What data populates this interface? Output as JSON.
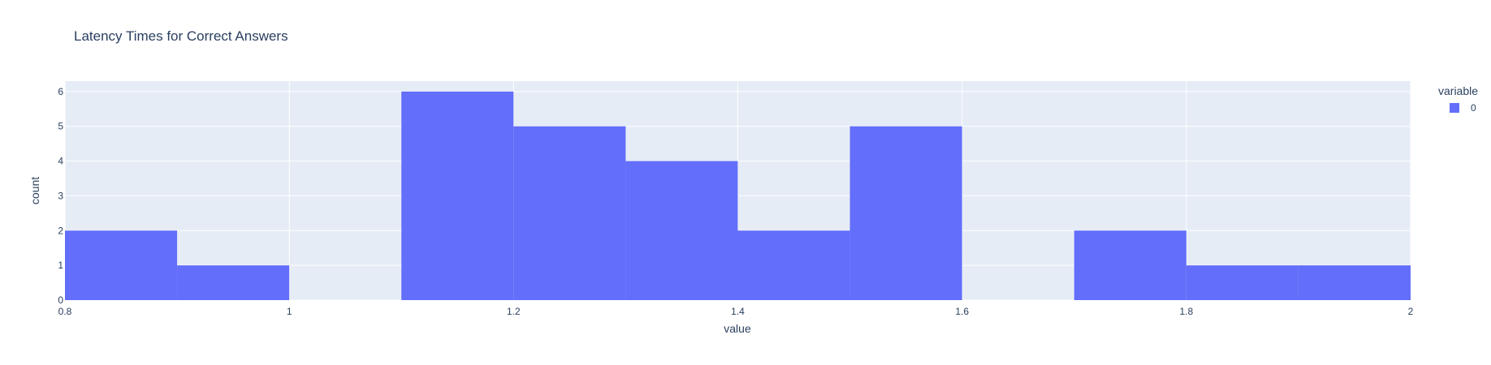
{
  "chart_data": {
    "type": "histogram",
    "title": "Latency Times for Correct Answers",
    "xlabel": "value",
    "ylabel": "count",
    "xlim": [
      0.8,
      2.0
    ],
    "ylim": [
      0,
      6.3
    ],
    "x_ticks": [
      "0.8",
      "1",
      "1.2",
      "1.4",
      "1.6",
      "1.8",
      "2"
    ],
    "y_ticks": [
      "0",
      "1",
      "2",
      "3",
      "4",
      "5",
      "6"
    ],
    "grid": true,
    "legend": {
      "title": "variable",
      "position": "top-right",
      "entries": [
        {
          "name": "0",
          "color": "#636efa"
        }
      ]
    },
    "series": [
      {
        "name": "0",
        "color": "#636efa",
        "bins": [
          {
            "start": 0.8,
            "end": 0.9,
            "count": 2
          },
          {
            "start": 0.9,
            "end": 1.0,
            "count": 1
          },
          {
            "start": 1.0,
            "end": 1.1,
            "count": 0
          },
          {
            "start": 1.1,
            "end": 1.2,
            "count": 6
          },
          {
            "start": 1.2,
            "end": 1.3,
            "count": 5
          },
          {
            "start": 1.3,
            "end": 1.4,
            "count": 4
          },
          {
            "start": 1.4,
            "end": 1.5,
            "count": 2
          },
          {
            "start": 1.5,
            "end": 1.6,
            "count": 5
          },
          {
            "start": 1.6,
            "end": 1.7,
            "count": 0
          },
          {
            "start": 1.7,
            "end": 1.8,
            "count": 2
          },
          {
            "start": 1.8,
            "end": 1.9,
            "count": 1
          },
          {
            "start": 1.9,
            "end": 2.0,
            "count": 1
          }
        ]
      }
    ],
    "colors": {
      "plot_background": "#e5ecf6",
      "gridline": "#ffffff",
      "text": "#2a3f5f"
    }
  }
}
